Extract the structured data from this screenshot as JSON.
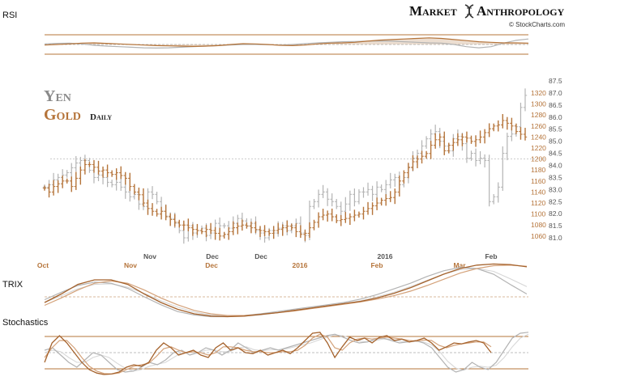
{
  "header": {
    "brand_left": "Market",
    "brand_right": "Anthropology",
    "credit": "© StockCharts.com"
  },
  "panels": {
    "rsi_label": "RSI",
    "trix_label": "TRIX",
    "stoch_label": "Stochastics"
  },
  "legend": {
    "yen": "Yen",
    "gold": "Gold",
    "gold_suffix": "Daily"
  },
  "colors": {
    "gold": "#b5743a",
    "yen": "#b3b3b3",
    "label_gray": "#888888",
    "text_dark": "#111111"
  },
  "chart_data": {
    "type": "line",
    "title": "",
    "x_axis_yen": [
      "Nov",
      "Dec",
      "Dec",
      "2016",
      "Feb"
    ],
    "x_axis_gold": [
      "Oct",
      "Nov",
      "Dec",
      "2016",
      "Feb",
      "Mar"
    ],
    "y_axis_gold": {
      "ticks": [
        1060,
        1080,
        1100,
        1120,
        1140,
        1160,
        1180,
        1200,
        1220,
        1240,
        1260,
        1280,
        1300,
        1320
      ],
      "range": [
        1048,
        1342
      ]
    },
    "y_axis_yen": {
      "ticks": [
        "81.0",
        "81.5",
        "82.0",
        "82.5",
        "83.0",
        "83.5",
        "84.0",
        "84.5",
        "85.0",
        "85.5",
        "86.0",
        "86.5",
        "87.0",
        "87.5"
      ],
      "range": [
        80.8,
        87.5
      ]
    },
    "reference_line": {
      "value": 1200,
      "axis": "gold"
    },
    "series": [
      {
        "name": "Gold",
        "axis": "gold",
        "values": [
          1147,
          1140,
          1150,
          1155,
          1160,
          1160,
          1150,
          1165,
          1180,
          1190,
          1190,
          1185,
          1178,
          1180,
          1175,
          1172,
          1175,
          1170,
          1165,
          1150,
          1140,
          1135,
          1120,
          1110,
          1105,
          1100,
          1105,
          1095,
          1090,
          1085,
          1080,
          1080,
          1075,
          1072,
          1070,
          1068,
          1072,
          1070,
          1065,
          1060,
          1063,
          1068,
          1075,
          1078,
          1080,
          1078,
          1075,
          1072,
          1070,
          1068,
          1065,
          1070,
          1072,
          1075,
          1078,
          1075,
          1068,
          1063,
          1065,
          1075,
          1085,
          1095,
          1098,
          1100,
          1095,
          1088,
          1090,
          1092,
          1095,
          1098,
          1100,
          1105,
          1110,
          1115,
          1120,
          1125,
          1128,
          1130,
          1140,
          1160,
          1175,
          1185,
          1195,
          1200,
          1205,
          1210,
          1225,
          1235,
          1240,
          1215,
          1225,
          1230,
          1235,
          1240,
          1238,
          1232,
          1235,
          1240,
          1248,
          1255,
          1260,
          1262,
          1270,
          1265,
          1260,
          1250,
          1245,
          1240
        ]
      },
      {
        "name": "Yen",
        "axis": "yen",
        "values": [
          83.1,
          83.2,
          83.4,
          83.5,
          83.6,
          83.7,
          83.9,
          84.1,
          84.2,
          84.2,
          83.8,
          83.5,
          83.6,
          83.5,
          83.3,
          83.2,
          83.3,
          83.1,
          82.9,
          82.7,
          82.8,
          82.4,
          82.3,
          82.9,
          82.8,
          82.5,
          82.1,
          81.9,
          81.8,
          81.6,
          81.3,
          81.0,
          81.5,
          81.2,
          81.3,
          81.4,
          81.1,
          81.2,
          81.6,
          81.5,
          81.5,
          81.4,
          81.6,
          81.8,
          81.7,
          81.5,
          81.6,
          81.3,
          81.2,
          81.0,
          81.3,
          81.2,
          81.4,
          81.5,
          81.3,
          81.5,
          81.6,
          81.2,
          81.1,
          82.3,
          82.5,
          82.8,
          82.9,
          82.6,
          82.5,
          82.3,
          82.1,
          82.4,
          82.8,
          82.5,
          82.9,
          82.9,
          83.0,
          82.8,
          83.1,
          83.0,
          83.2,
          83.4,
          83.5,
          83.2,
          83.5,
          83.9,
          84.3,
          84.5,
          84.8,
          85.1,
          85.3,
          85.4,
          85.0,
          84.8,
          84.6,
          85.1,
          85.2,
          84.9,
          84.3,
          84.5,
          84.2,
          84.3,
          84.2,
          82.5,
          82.7,
          83.1,
          84.5,
          85.2,
          85.3,
          85.6,
          86.4,
          86.9
        ]
      }
    ],
    "rsi": {
      "gold": [
        0.48,
        0.5,
        0.52,
        0.55,
        0.56,
        0.54,
        0.52,
        0.5,
        0.48,
        0.46,
        0.45,
        0.44,
        0.43,
        0.44,
        0.46,
        0.5,
        0.53,
        0.52,
        0.5,
        0.47,
        0.46,
        0.48,
        0.52,
        0.55,
        0.56,
        0.58,
        0.62,
        0.66,
        0.68,
        0.7,
        0.72,
        0.74,
        0.72,
        0.68,
        0.64,
        0.6,
        0.58,
        0.56,
        0.56,
        0.55
      ],
      "yen": [
        0.52,
        0.54,
        0.55,
        0.52,
        0.47,
        0.44,
        0.42,
        0.4,
        0.38,
        0.37,
        0.38,
        0.4,
        0.42,
        0.44,
        0.46,
        0.48,
        0.5,
        0.5,
        0.49,
        0.48,
        0.5,
        0.53,
        0.56,
        0.58,
        0.6,
        0.61,
        0.62,
        0.63,
        0.62,
        0.6,
        0.58,
        0.56,
        0.55,
        0.5,
        0.42,
        0.38,
        0.42,
        0.55,
        0.65,
        0.7
      ]
    },
    "trix": {
      "gold": [
        0.3,
        0.45,
        0.62,
        0.7,
        0.7,
        0.62,
        0.45,
        0.3,
        0.18,
        0.1,
        0.06,
        0.05,
        0.06,
        0.09,
        0.12,
        0.16,
        0.2,
        0.24,
        0.28,
        0.32,
        0.38,
        0.46,
        0.56,
        0.68,
        0.8,
        0.9,
        0.96,
        0.98,
        0.97,
        0.93
      ],
      "gold_signal": [
        0.25,
        0.38,
        0.52,
        0.64,
        0.68,
        0.64,
        0.52,
        0.38,
        0.26,
        0.16,
        0.1,
        0.07,
        0.07,
        0.09,
        0.12,
        0.15,
        0.19,
        0.23,
        0.27,
        0.31,
        0.36,
        0.42,
        0.5,
        0.6,
        0.71,
        0.82,
        0.9,
        0.95,
        0.96,
        0.94
      ],
      "yen": [
        0.35,
        0.48,
        0.6,
        0.66,
        0.64,
        0.55,
        0.4,
        0.26,
        0.14,
        0.08,
        0.05,
        0.05,
        0.07,
        0.1,
        0.14,
        0.18,
        0.22,
        0.26,
        0.3,
        0.36,
        0.44,
        0.54,
        0.64,
        0.76,
        0.86,
        0.92,
        0.9,
        0.8,
        0.62,
        0.45
      ],
      "yen_signal": [
        0.3,
        0.42,
        0.54,
        0.62,
        0.63,
        0.57,
        0.46,
        0.33,
        0.22,
        0.13,
        0.08,
        0.06,
        0.06,
        0.08,
        0.12,
        0.16,
        0.2,
        0.24,
        0.28,
        0.33,
        0.4,
        0.48,
        0.58,
        0.69,
        0.8,
        0.88,
        0.9,
        0.85,
        0.72,
        0.58
      ]
    },
    "stochastics": {
      "gold_k": [
        0.3,
        0.7,
        0.85,
        0.7,
        0.5,
        0.3,
        0.15,
        0.08,
        0.05,
        0.06,
        0.1,
        0.2,
        0.25,
        0.22,
        0.3,
        0.55,
        0.7,
        0.6,
        0.45,
        0.5,
        0.55,
        0.45,
        0.4,
        0.6,
        0.7,
        0.55,
        0.6,
        0.5,
        0.48,
        0.55,
        0.45,
        0.5,
        0.55,
        0.48,
        0.6,
        0.75,
        0.9,
        0.92,
        0.7,
        0.4,
        0.62,
        0.82,
        0.75,
        0.8,
        0.7,
        0.82,
        0.85,
        0.75,
        0.78,
        0.72,
        0.75,
        0.8,
        0.7,
        0.55,
        0.62,
        0.7,
        0.68,
        0.72,
        0.75,
        0.7,
        0.5
      ],
      "gold_d": [
        0.4,
        0.6,
        0.75,
        0.75,
        0.6,
        0.4,
        0.22,
        0.12,
        0.07,
        0.06,
        0.08,
        0.15,
        0.22,
        0.25,
        0.28,
        0.42,
        0.58,
        0.62,
        0.55,
        0.5,
        0.52,
        0.5,
        0.45,
        0.5,
        0.62,
        0.62,
        0.6,
        0.55,
        0.52,
        0.52,
        0.5,
        0.5,
        0.52,
        0.52,
        0.55,
        0.65,
        0.8,
        0.88,
        0.82,
        0.6,
        0.55,
        0.7,
        0.78,
        0.8,
        0.78,
        0.8,
        0.82,
        0.8,
        0.78,
        0.75,
        0.74,
        0.76,
        0.75,
        0.65,
        0.6,
        0.65,
        0.68,
        0.7,
        0.72,
        0.72,
        0.62
      ],
      "yen_k": [
        0.55,
        0.6,
        0.45,
        0.3,
        0.2,
        0.35,
        0.5,
        0.45,
        0.3,
        0.15,
        0.1,
        0.12,
        0.2,
        0.3,
        0.25,
        0.35,
        0.5,
        0.55,
        0.45,
        0.5,
        0.6,
        0.55,
        0.45,
        0.55,
        0.7,
        0.6,
        0.5,
        0.55,
        0.6,
        0.55,
        0.6,
        0.65,
        0.7,
        0.75,
        0.8,
        0.85,
        0.88,
        0.82,
        0.75,
        0.7,
        0.72,
        0.78,
        0.8,
        0.75,
        0.7,
        0.72,
        0.75,
        0.7,
        0.6,
        0.4,
        0.2,
        0.1,
        0.15,
        0.3,
        0.2,
        0.15,
        0.3,
        0.55,
        0.8,
        0.9,
        0.92
      ],
      "yen_d": [
        0.5,
        0.55,
        0.52,
        0.4,
        0.3,
        0.3,
        0.4,
        0.45,
        0.4,
        0.28,
        0.18,
        0.12,
        0.15,
        0.22,
        0.26,
        0.3,
        0.4,
        0.5,
        0.5,
        0.5,
        0.55,
        0.56,
        0.52,
        0.52,
        0.6,
        0.62,
        0.56,
        0.54,
        0.56,
        0.56,
        0.58,
        0.62,
        0.66,
        0.7,
        0.76,
        0.82,
        0.86,
        0.85,
        0.8,
        0.74,
        0.72,
        0.75,
        0.78,
        0.78,
        0.74,
        0.72,
        0.73,
        0.72,
        0.66,
        0.52,
        0.32,
        0.18,
        0.14,
        0.2,
        0.22,
        0.2,
        0.24,
        0.4,
        0.62,
        0.8,
        0.88
      ]
    }
  }
}
